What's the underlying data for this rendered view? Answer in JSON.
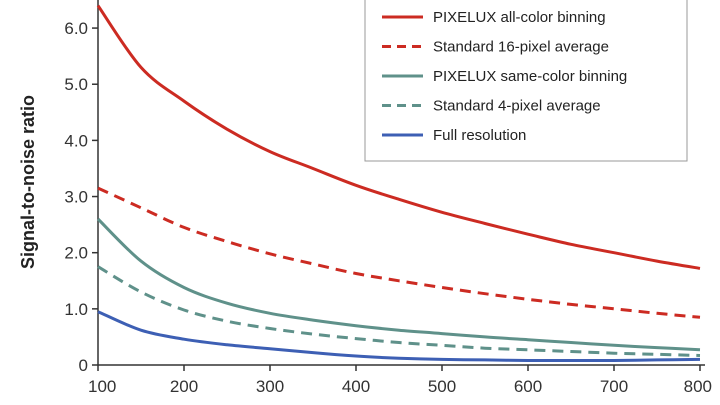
{
  "chart_data": {
    "type": "line",
    "title": "",
    "xlabel": "",
    "ylabel": "Signal-to-noise ratio",
    "xlim": [
      100,
      800
    ],
    "ylim": [
      0,
      6.5
    ],
    "x_ticks": [
      "100",
      "200",
      "300",
      "400",
      "500",
      "600",
      "700",
      "800"
    ],
    "y_ticks": [
      "0",
      "1.0",
      "2.0",
      "3.0",
      "4.0",
      "5.0",
      "6.0"
    ],
    "grid": false,
    "legend_position": "top-right",
    "series": [
      {
        "name": "PIXELUX all-color binning",
        "color": "#cc2b22",
        "style": "solid",
        "x": [
          100,
          150,
          200,
          250,
          300,
          350,
          400,
          450,
          500,
          550,
          600,
          650,
          700,
          750,
          800
        ],
        "y": [
          6.4,
          5.3,
          4.7,
          4.2,
          3.8,
          3.5,
          3.2,
          2.95,
          2.72,
          2.52,
          2.33,
          2.15,
          2.0,
          1.85,
          1.72
        ]
      },
      {
        "name": "Standard 16-pixel average",
        "color": "#cc2b22",
        "style": "dashed",
        "x": [
          100,
          150,
          200,
          250,
          300,
          350,
          400,
          450,
          500,
          550,
          600,
          650,
          700,
          750,
          800
        ],
        "y": [
          3.15,
          2.8,
          2.45,
          2.2,
          1.98,
          1.8,
          1.63,
          1.5,
          1.38,
          1.27,
          1.17,
          1.08,
          1.0,
          0.92,
          0.85
        ]
      },
      {
        "name": "PIXELUX same-color binning",
        "color": "#5f918a",
        "style": "solid",
        "x": [
          100,
          150,
          200,
          250,
          300,
          350,
          400,
          450,
          500,
          550,
          600,
          650,
          700,
          750,
          800
        ],
        "y": [
          2.6,
          1.85,
          1.38,
          1.1,
          0.92,
          0.8,
          0.7,
          0.62,
          0.56,
          0.5,
          0.45,
          0.4,
          0.35,
          0.31,
          0.27
        ]
      },
      {
        "name": "Standard 4-pixel average",
        "color": "#5f918a",
        "style": "dashed",
        "x": [
          100,
          150,
          200,
          250,
          300,
          350,
          400,
          450,
          500,
          550,
          600,
          650,
          700,
          750,
          800
        ],
        "y": [
          1.75,
          1.3,
          0.98,
          0.78,
          0.65,
          0.55,
          0.47,
          0.4,
          0.35,
          0.3,
          0.27,
          0.24,
          0.21,
          0.19,
          0.17
        ]
      },
      {
        "name": "Full resolution",
        "color": "#3d5fb4",
        "style": "solid",
        "x": [
          100,
          150,
          200,
          250,
          300,
          350,
          400,
          450,
          500,
          550,
          600,
          650,
          700,
          750,
          800
        ],
        "y": [
          0.95,
          0.62,
          0.46,
          0.36,
          0.29,
          0.22,
          0.16,
          0.12,
          0.1,
          0.09,
          0.08,
          0.08,
          0.08,
          0.09,
          0.1
        ]
      }
    ]
  }
}
